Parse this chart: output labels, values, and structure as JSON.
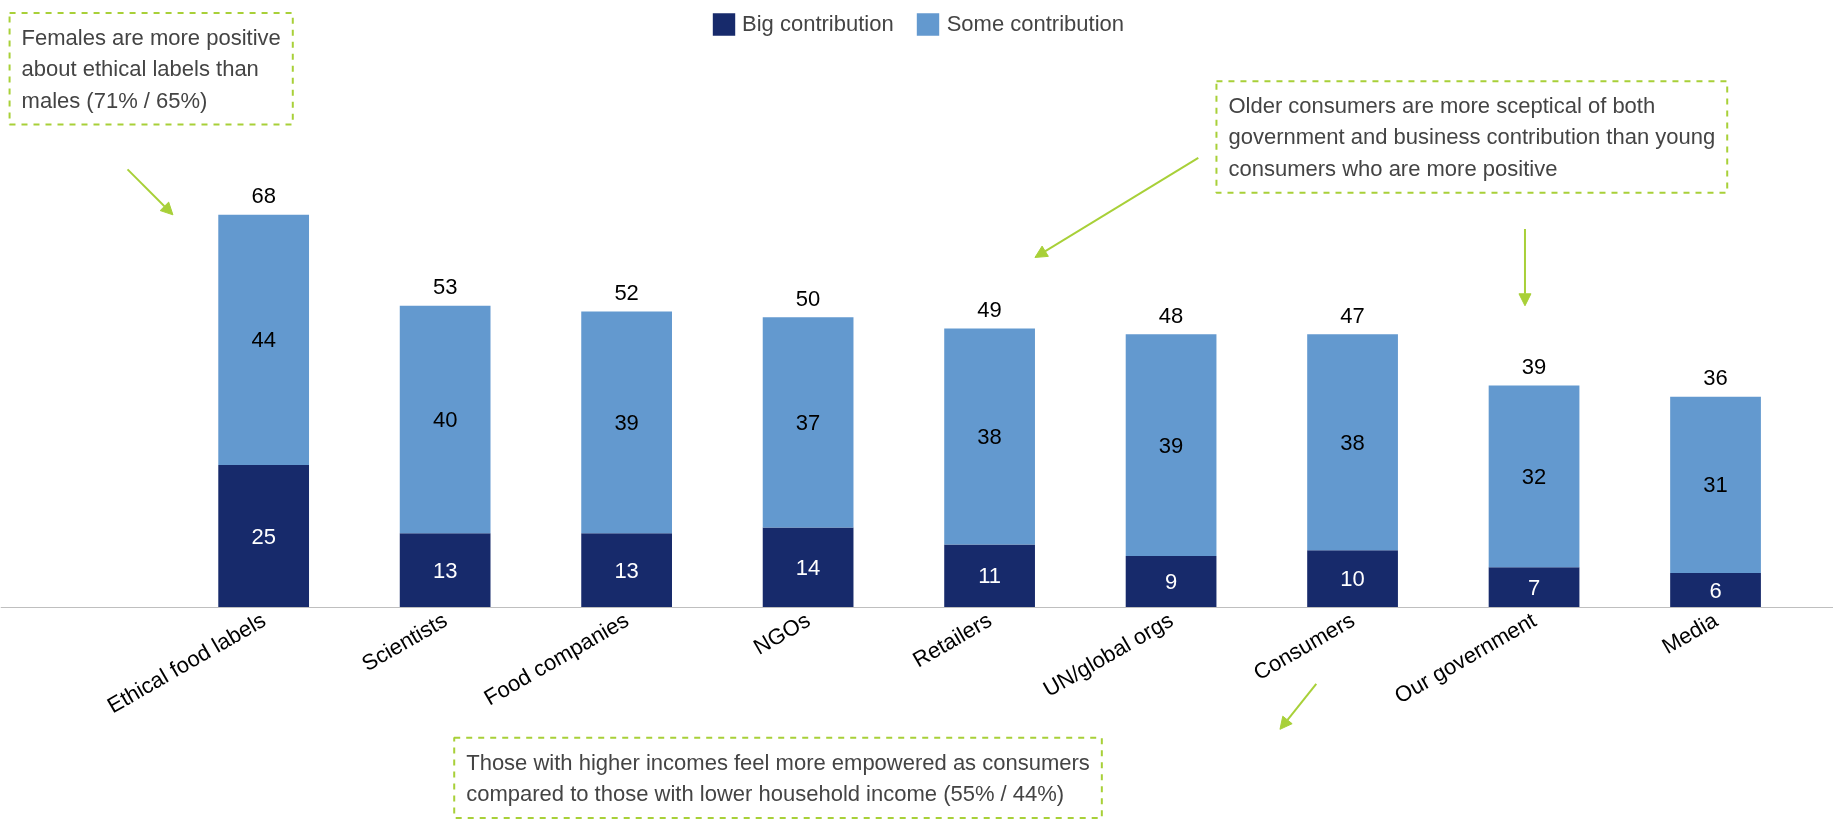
{
  "chart_data": {
    "type": "bar",
    "stacked": true,
    "data_labels": true,
    "legend": "top",
    "grid": false,
    "categories": [
      "Ethical food labels",
      "Scientists",
      "Food companies",
      "NGOs",
      "Retailers",
      "UN/global orgs",
      "Consumers",
      "Our government",
      "Media"
    ],
    "series": [
      {
        "name": "Big contribution",
        "color": "#172a6b",
        "values": [
          25,
          13,
          13,
          14,
          11,
          9,
          10,
          7,
          6
        ]
      },
      {
        "name": "Some contribution",
        "color": "#6399cf",
        "values": [
          44,
          40,
          39,
          37,
          38,
          39,
          38,
          32,
          31
        ]
      }
    ],
    "totals": [
      "68",
      "53",
      "52",
      "50",
      "49",
      "48",
      "47",
      "39",
      "36"
    ],
    "annotations": [
      "Females are more positive about ethical labels than males (71% / 65%)",
      "Older consumers are more sceptical of both government and business contribution than young consumers who are more positive",
      "Those with higher incomes feel more empowered as consumers compared to those with lower household income (55% / 44%)"
    ]
  }
}
